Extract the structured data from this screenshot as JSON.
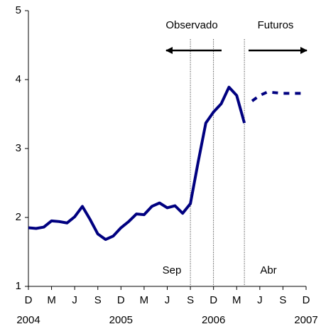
{
  "chart_data": {
    "type": "line",
    "categories": [
      "D",
      null,
      null,
      "M",
      null,
      null,
      "J",
      null,
      null,
      "S",
      null,
      null,
      "D",
      null,
      null,
      "M",
      null,
      null,
      "J",
      null,
      null,
      "S",
      null,
      null,
      "D",
      null,
      null,
      "M",
      null,
      null,
      "J",
      null,
      null,
      "S",
      null,
      null,
      "D"
    ],
    "year_labels": [
      "2004",
      "2005",
      "2006",
      "2007"
    ],
    "series": [
      {
        "color": "#000080",
        "style": "solid",
        "values": [
          1.85,
          1.84,
          1.86,
          1.95,
          1.94,
          1.92,
          2.01,
          2.16,
          1.97,
          1.76,
          1.68,
          1.73,
          1.85,
          1.94,
          2.05,
          2.04,
          2.16,
          2.21,
          2.14,
          2.17,
          2.06,
          2.2,
          2.8,
          3.37,
          3.53,
          3.65,
          3.89,
          3.77,
          3.37,
          null,
          null,
          null,
          null,
          null,
          null,
          null,
          null
        ]
      },
      {
        "color": "#000080",
        "style": "dashed",
        "values": [
          null,
          null,
          null,
          null,
          null,
          null,
          null,
          null,
          null,
          null,
          null,
          null,
          null,
          null,
          null,
          null,
          null,
          null,
          null,
          null,
          null,
          null,
          null,
          null,
          null,
          null,
          null,
          null,
          null,
          3.69,
          3.77,
          3.82,
          3.81,
          3.8,
          3.8,
          3.8,
          3.8
        ]
      }
    ],
    "ylim": [
      1,
      5
    ],
    "yticks": [
      1,
      2,
      3,
      4,
      5
    ],
    "vlines": [
      21,
      24,
      28
    ],
    "annotations": [
      "Observado",
      "Futuros",
      "Sep",
      "Abr"
    ],
    "grid": false
  }
}
